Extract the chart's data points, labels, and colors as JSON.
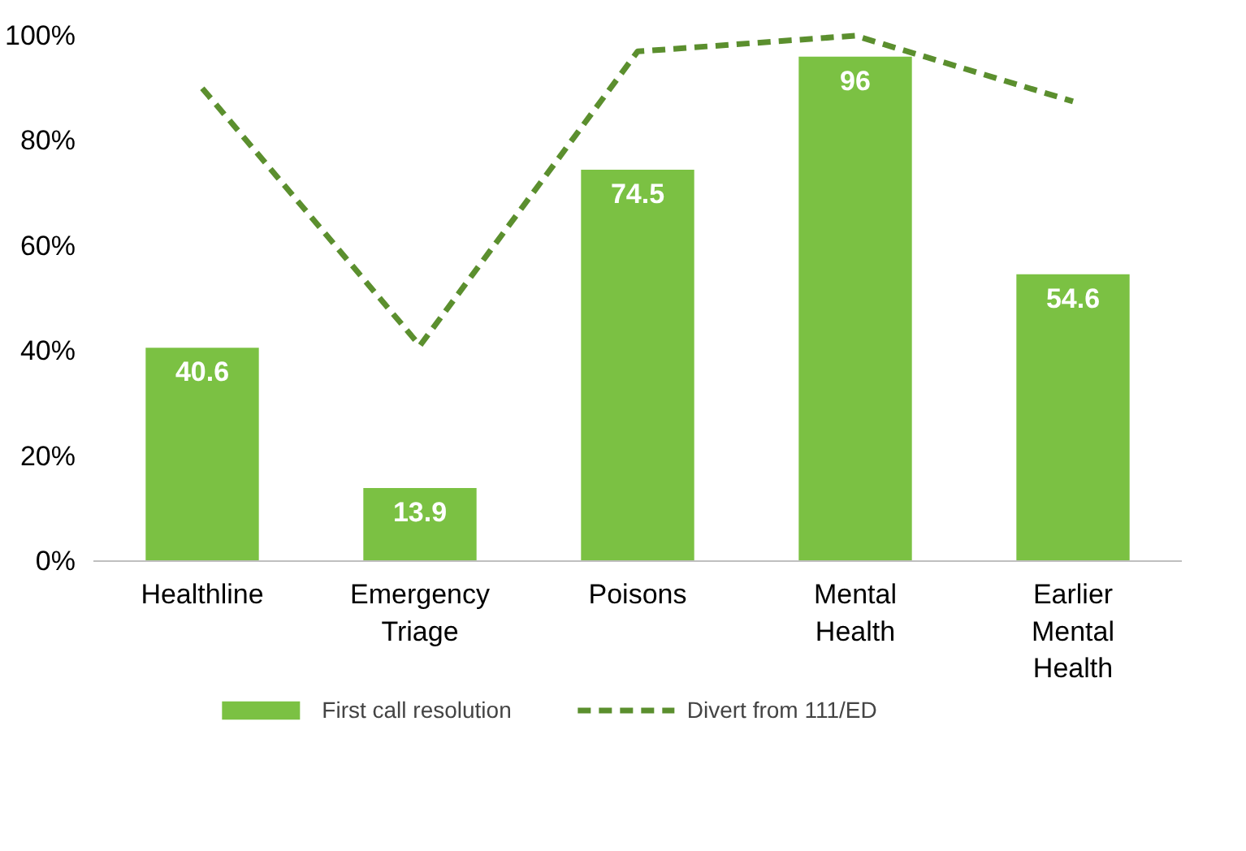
{
  "chart_data": {
    "type": "bar",
    "categories": [
      "Healthline",
      "Emergency\nTriage",
      "Poisons",
      "Mental\nHealth",
      "Earlier\nMental\nHealth"
    ],
    "series": [
      {
        "name": "First call resolution",
        "color": "#7bc143",
        "values": [
          40.6,
          13.9,
          74.5,
          96,
          54.6
        ],
        "value_labels": [
          "40.6",
          "13.9",
          "74.5",
          "96",
          "54.6"
        ]
      },
      {
        "name": "Divert from 111/ED",
        "type": "line",
        "color": "#5b8f2e",
        "line_style": "dashed",
        "values": [
          90,
          41,
          97,
          100,
          87.5
        ]
      }
    ],
    "ylim": [
      0,
      100
    ],
    "yticks": [
      {
        "value": 0,
        "label": "0%"
      },
      {
        "value": 20,
        "label": "20%"
      },
      {
        "value": 40,
        "label": "40%"
      },
      {
        "value": 60,
        "label": "60%"
      },
      {
        "value": 80,
        "label": "80%"
      },
      {
        "value": 100,
        "label": "100%"
      }
    ],
    "legend": "bottom",
    "grid": false
  }
}
